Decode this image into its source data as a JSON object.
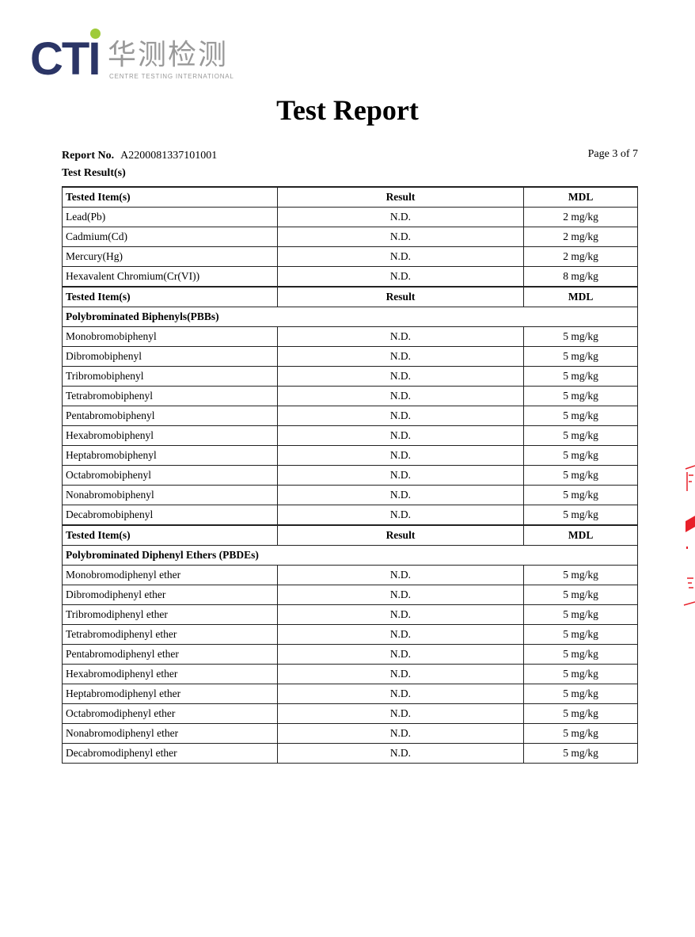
{
  "logo": {
    "brand": "CTI",
    "chinese": "华测检测",
    "english": "CENTRE TESTING INTERNATIONAL",
    "colors": {
      "brand": "#2b3566",
      "dot": "#9fcb3a"
    }
  },
  "title": "Test Report",
  "report_no_label": "Report No.",
  "report_no": "A2200081337101001",
  "page": "Page 3 of 7",
  "result_heading": "Test Result(s)",
  "headers": {
    "item": "Tested Item(s)",
    "result": "Result",
    "mdl": "MDL"
  },
  "sections": [
    {
      "subtitle": "",
      "rows": [
        {
          "item": "Lead(Pb)",
          "result": "N.D.",
          "mdl": "2 mg/kg"
        },
        {
          "item": "Cadmium(Cd)",
          "result": "N.D.",
          "mdl": "2 mg/kg"
        },
        {
          "item": "Mercury(Hg)",
          "result": "N.D.",
          "mdl": "2 mg/kg"
        },
        {
          "item": "Hexavalent Chromium(Cr(VI))",
          "result": "N.D.",
          "mdl": "8 mg/kg"
        }
      ]
    },
    {
      "subtitle": "Polybrominated Biphenyls(PBBs)",
      "rows": [
        {
          "item": "Monobromobiphenyl",
          "result": "N.D.",
          "mdl": "5 mg/kg"
        },
        {
          "item": "Dibromobiphenyl",
          "result": "N.D.",
          "mdl": "5 mg/kg"
        },
        {
          "item": "Tribromobiphenyl",
          "result": "N.D.",
          "mdl": "5 mg/kg"
        },
        {
          "item": "Tetrabromobiphenyl",
          "result": "N.D.",
          "mdl": "5 mg/kg"
        },
        {
          "item": "Pentabromobiphenyl",
          "result": "N.D.",
          "mdl": "5 mg/kg"
        },
        {
          "item": "Hexabromobiphenyl",
          "result": "N.D.",
          "mdl": "5 mg/kg"
        },
        {
          "item": "Heptabromobiphenyl",
          "result": "N.D.",
          "mdl": "5 mg/kg"
        },
        {
          "item": "Octabromobiphenyl",
          "result": "N.D.",
          "mdl": "5 mg/kg"
        },
        {
          "item": "Nonabromobiphenyl",
          "result": "N.D.",
          "mdl": "5 mg/kg"
        },
        {
          "item": "Decabromobiphenyl",
          "result": "N.D.",
          "mdl": "5 mg/kg"
        }
      ]
    },
    {
      "subtitle": "Polybrominated Diphenyl Ethers (PBDEs)",
      "rows": [
        {
          "item": "Monobromodiphenyl ether",
          "result": "N.D.",
          "mdl": "5 mg/kg"
        },
        {
          "item": "Dibromodiphenyl ether",
          "result": "N.D.",
          "mdl": "5 mg/kg"
        },
        {
          "item": "Tribromodiphenyl ether",
          "result": "N.D.",
          "mdl": "5 mg/kg"
        },
        {
          "item": "Tetrabromodiphenyl ether",
          "result": "N.D.",
          "mdl": "5 mg/kg"
        },
        {
          "item": "Pentabromodiphenyl ether",
          "result": "N.D.",
          "mdl": "5 mg/kg"
        },
        {
          "item": "Hexabromodiphenyl ether",
          "result": "N.D.",
          "mdl": "5 mg/kg"
        },
        {
          "item": "Heptabromodiphenyl ether",
          "result": "N.D.",
          "mdl": "5 mg/kg"
        },
        {
          "item": "Octabromodiphenyl ether",
          "result": "N.D.",
          "mdl": "5 mg/kg"
        },
        {
          "item": "Nonabromodiphenyl ether",
          "result": "N.D.",
          "mdl": "5 mg/kg"
        },
        {
          "item": "Decabromodiphenyl ether",
          "result": "N.D.",
          "mdl": "5 mg/kg"
        }
      ]
    }
  ],
  "stamp_color": "#e8202a"
}
